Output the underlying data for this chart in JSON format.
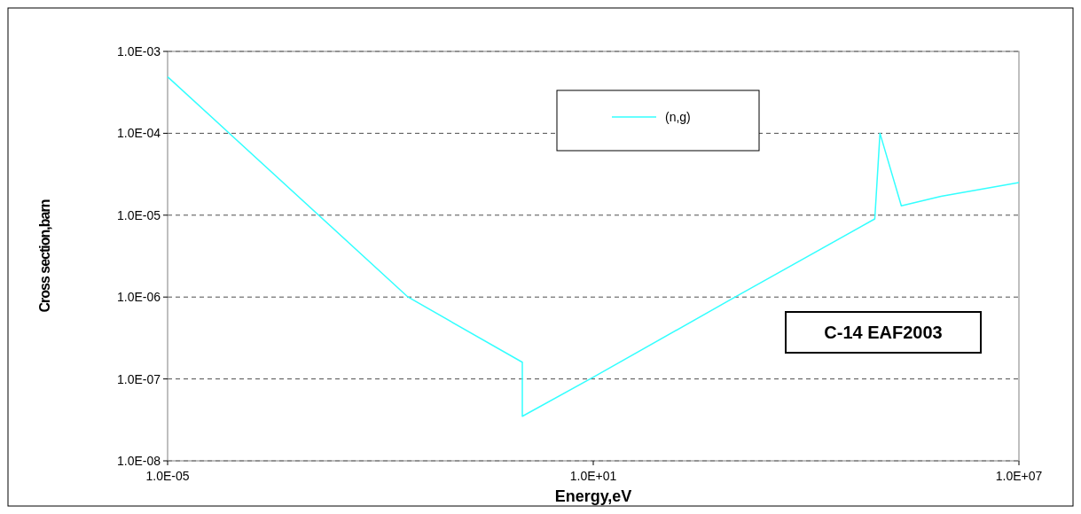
{
  "chart_data": {
    "type": "line",
    "xlabel": "Energy,eV",
    "ylabel": "Cross section,barn",
    "log": "xy",
    "grid": "y",
    "legend": "top",
    "line_style": "solid",
    "xlim": [
      1e-05,
      10000000.0
    ],
    "ylim": [
      1e-08,
      0.001
    ],
    "xticks": [
      {
        "value": 1e-05,
        "label": "1.0E-05"
      },
      {
        "value": 10,
        "label": "1.0E+01"
      },
      {
        "value": 10000000.0,
        "label": "1.0E+07"
      }
    ],
    "yticks": [
      {
        "value": 1e-08,
        "label": "1.0E-08"
      },
      {
        "value": 1e-07,
        "label": "1.0E-07"
      },
      {
        "value": 1e-06,
        "label": "1.0E-06"
      },
      {
        "value": 1e-05,
        "label": "1.0E-05"
      },
      {
        "value": 0.0001,
        "label": "1.0E-04"
      },
      {
        "value": 0.001,
        "label": "1.0E-03"
      }
    ],
    "annotations": [
      "C-14 EAF2003"
    ],
    "series": [
      {
        "name": "(n,g)",
        "color": "#33ffff",
        "x": [
          1e-05,
          0.0245,
          1.0,
          1.0,
          10,
          1000,
          93000,
          110000,
          220000,
          800000,
          10000000
        ],
        "values": [
          0.00049,
          1e-06,
          1.6e-07,
          3.5e-08,
          1.05e-07,
          1e-06,
          9e-06,
          0.0001,
          1.3e-05,
          1.7e-05,
          2.5e-05
        ]
      }
    ]
  }
}
